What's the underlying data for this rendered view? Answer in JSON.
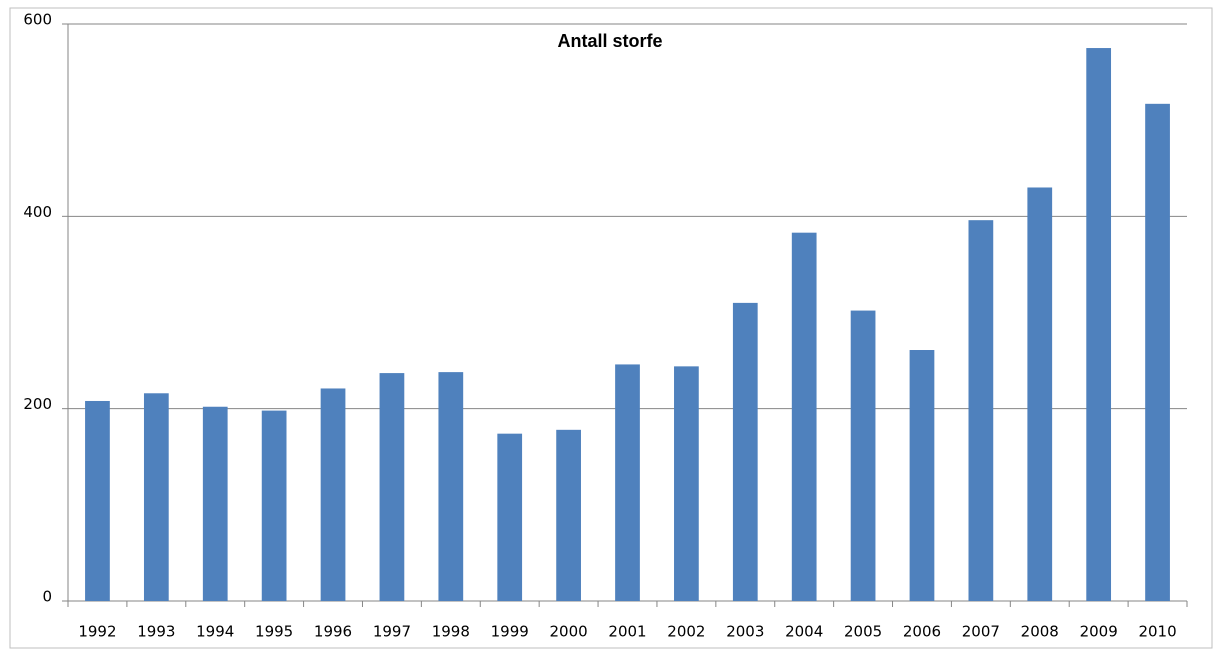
{
  "chart_data": {
    "type": "bar",
    "title": "Antall storfe",
    "categories": [
      "1992",
      "1993",
      "1994",
      "1995",
      "1996",
      "1997",
      "1998",
      "1999",
      "2000",
      "2001",
      "2002",
      "2003",
      "2004",
      "2005",
      "2006",
      "2007",
      "2008",
      "2009",
      "2010"
    ],
    "values": [
      208,
      216,
      202,
      198,
      221,
      237,
      238,
      174,
      178,
      246,
      244,
      310,
      383,
      302,
      261,
      396,
      430,
      575,
      517
    ],
    "color": "#4f81bd",
    "ylim": [
      0,
      600
    ],
    "yticks": [
      0,
      200,
      400,
      600
    ],
    "grid": true
  }
}
